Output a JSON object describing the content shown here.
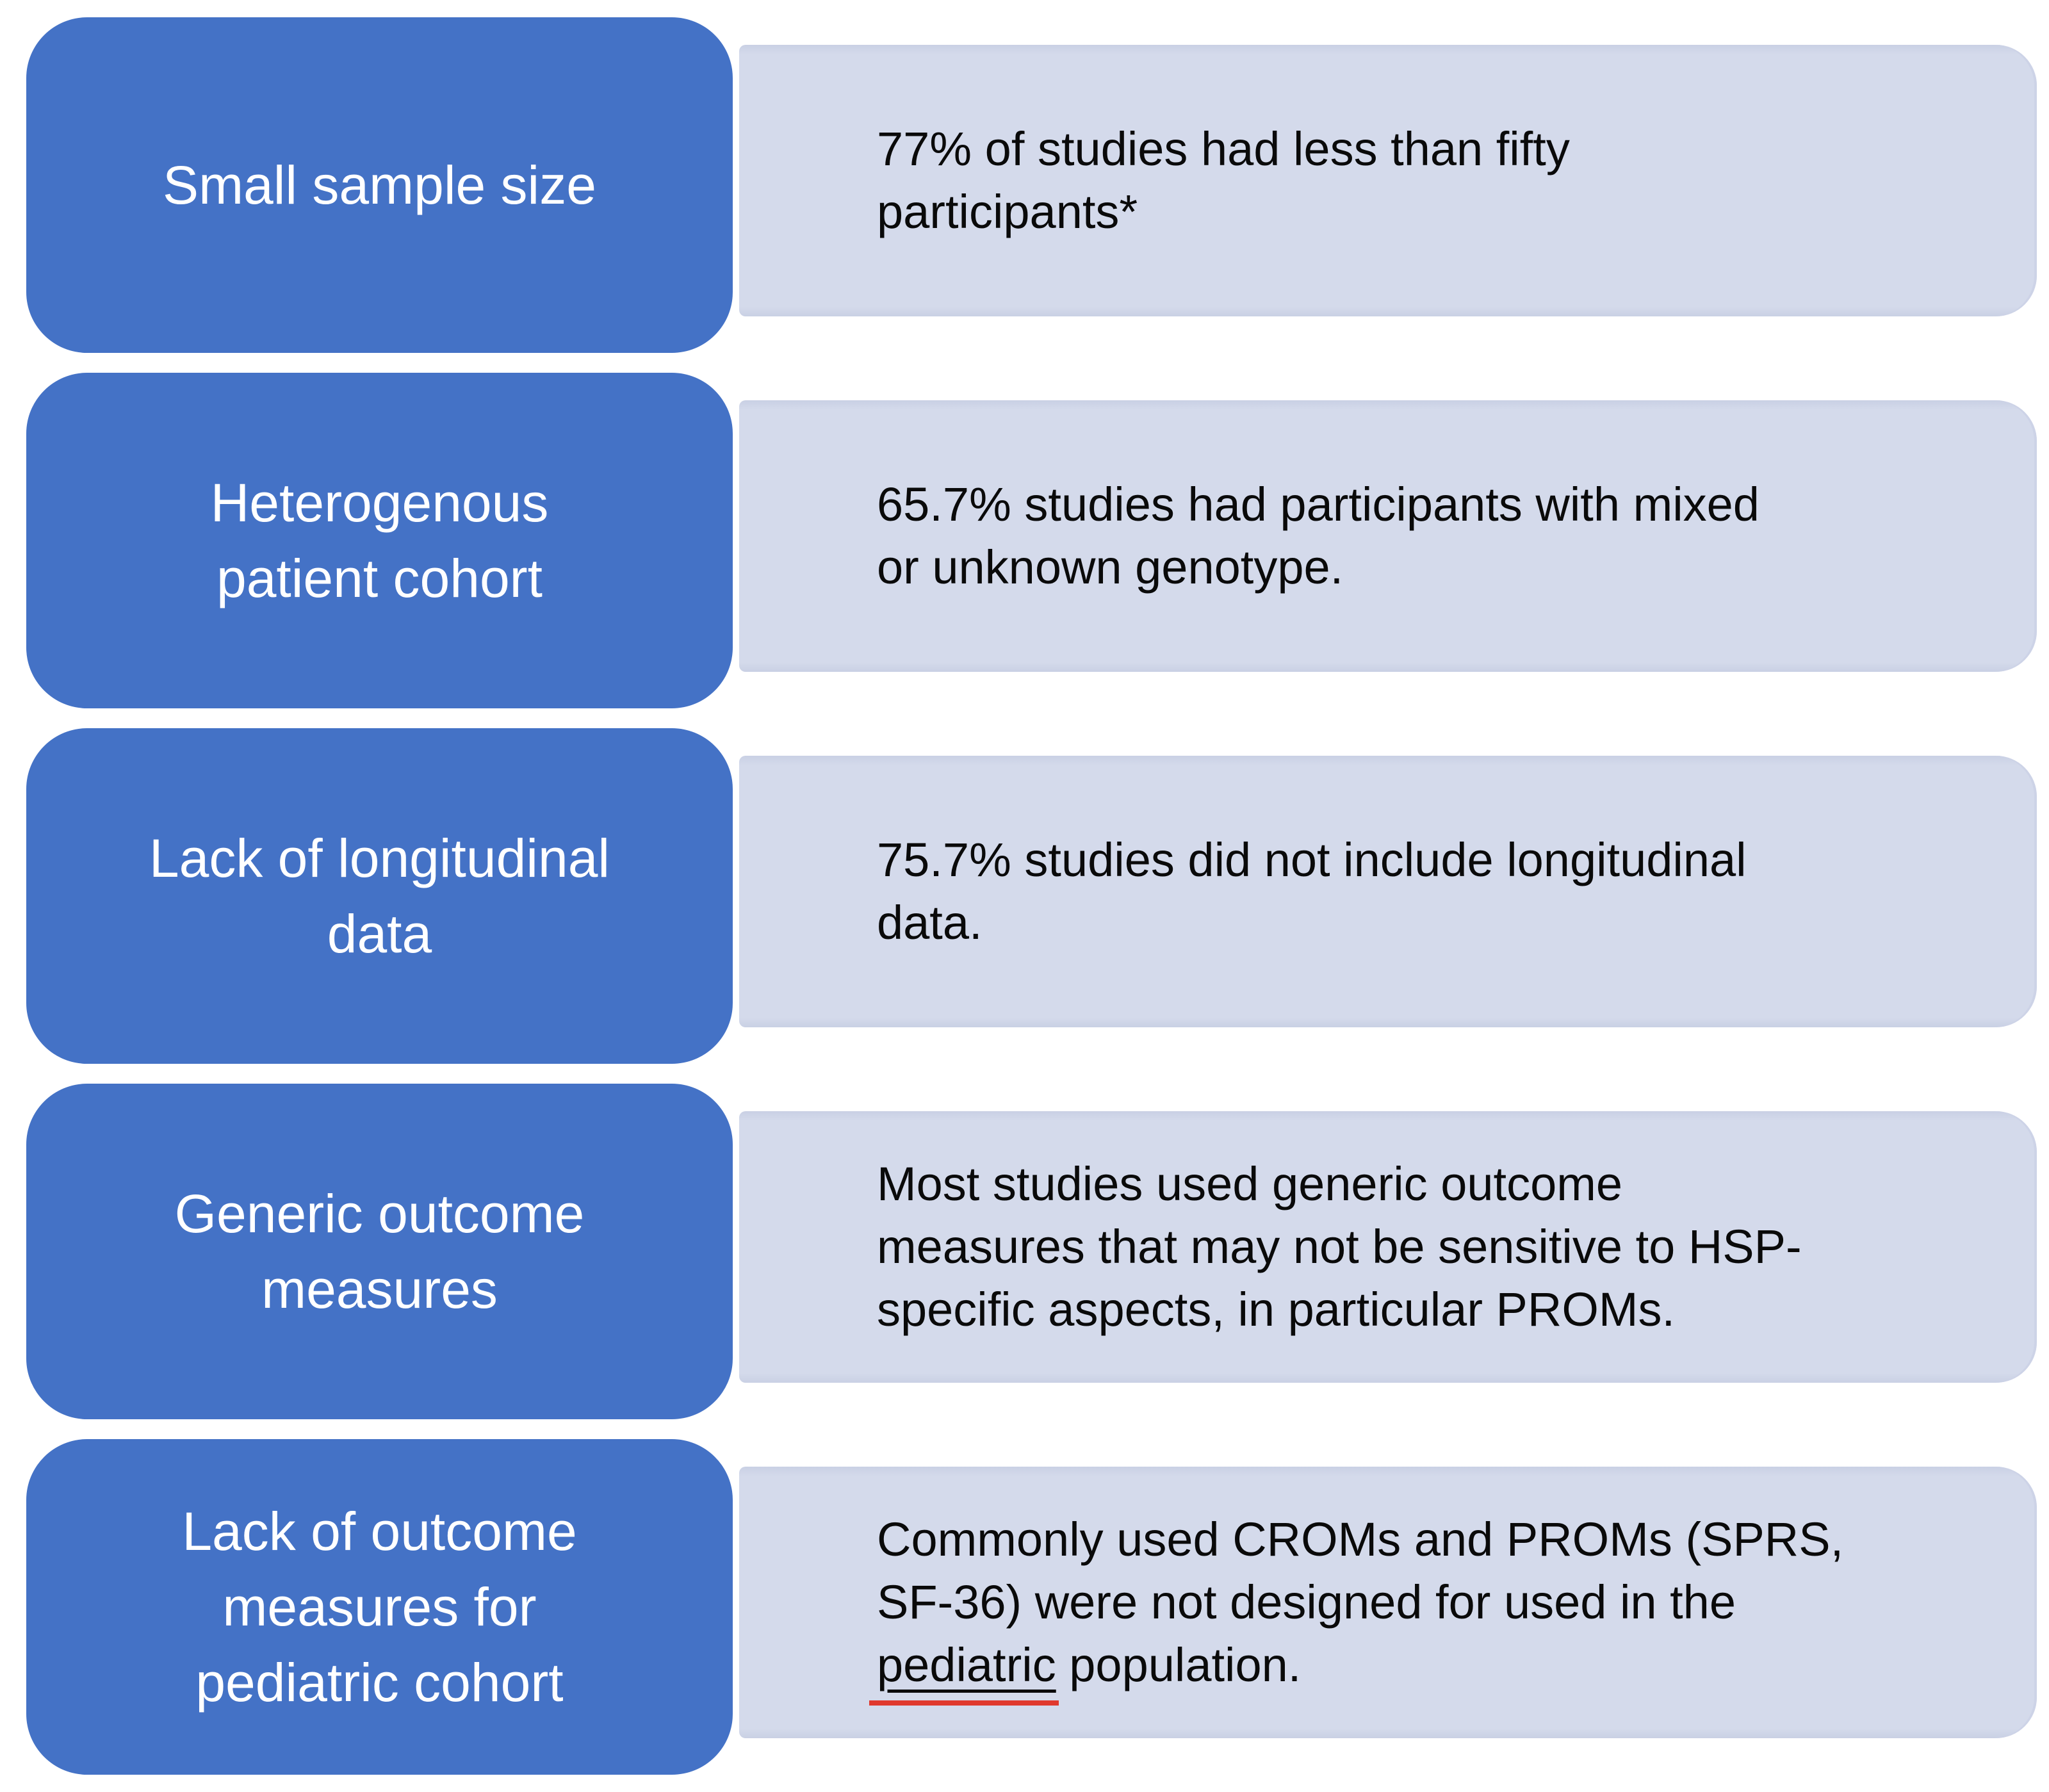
{
  "diagram": {
    "background_color": "#ffffff",
    "accent_blue": "#4472c6",
    "light_fill": "#d4daeb",
    "text_dark": "#0a0a0a",
    "label_text_color": "#ffffff",
    "spellcheck_red": "#e0392e",
    "rows": [
      {
        "label": "Small sample size",
        "description": "77% of studies had less than fifty\nparticipants*"
      },
      {
        "label": "Heterogenous\npatient cohort",
        "description": "65.7% studies had participants with mixed\nor unknown genotype."
      },
      {
        "label": "Lack of longitudinal\ndata",
        "description": "75.7% studies did not include longitudinal\ndata."
      },
      {
        "label": "Generic outcome\nmeasures",
        "description": "Most studies used generic outcome\nmeasures that may not be sensitive to HSP-\nspecific aspects, in particular PROMs."
      },
      {
        "label": "Lack of outcome\nmeasures for\npediatric cohort",
        "description_before": "Commonly used CROMs and PROMs (SPRS,\nSF-36) were not designed for used in the\n",
        "description_highlight": "pediatric",
        "description_after": " population."
      }
    ]
  }
}
